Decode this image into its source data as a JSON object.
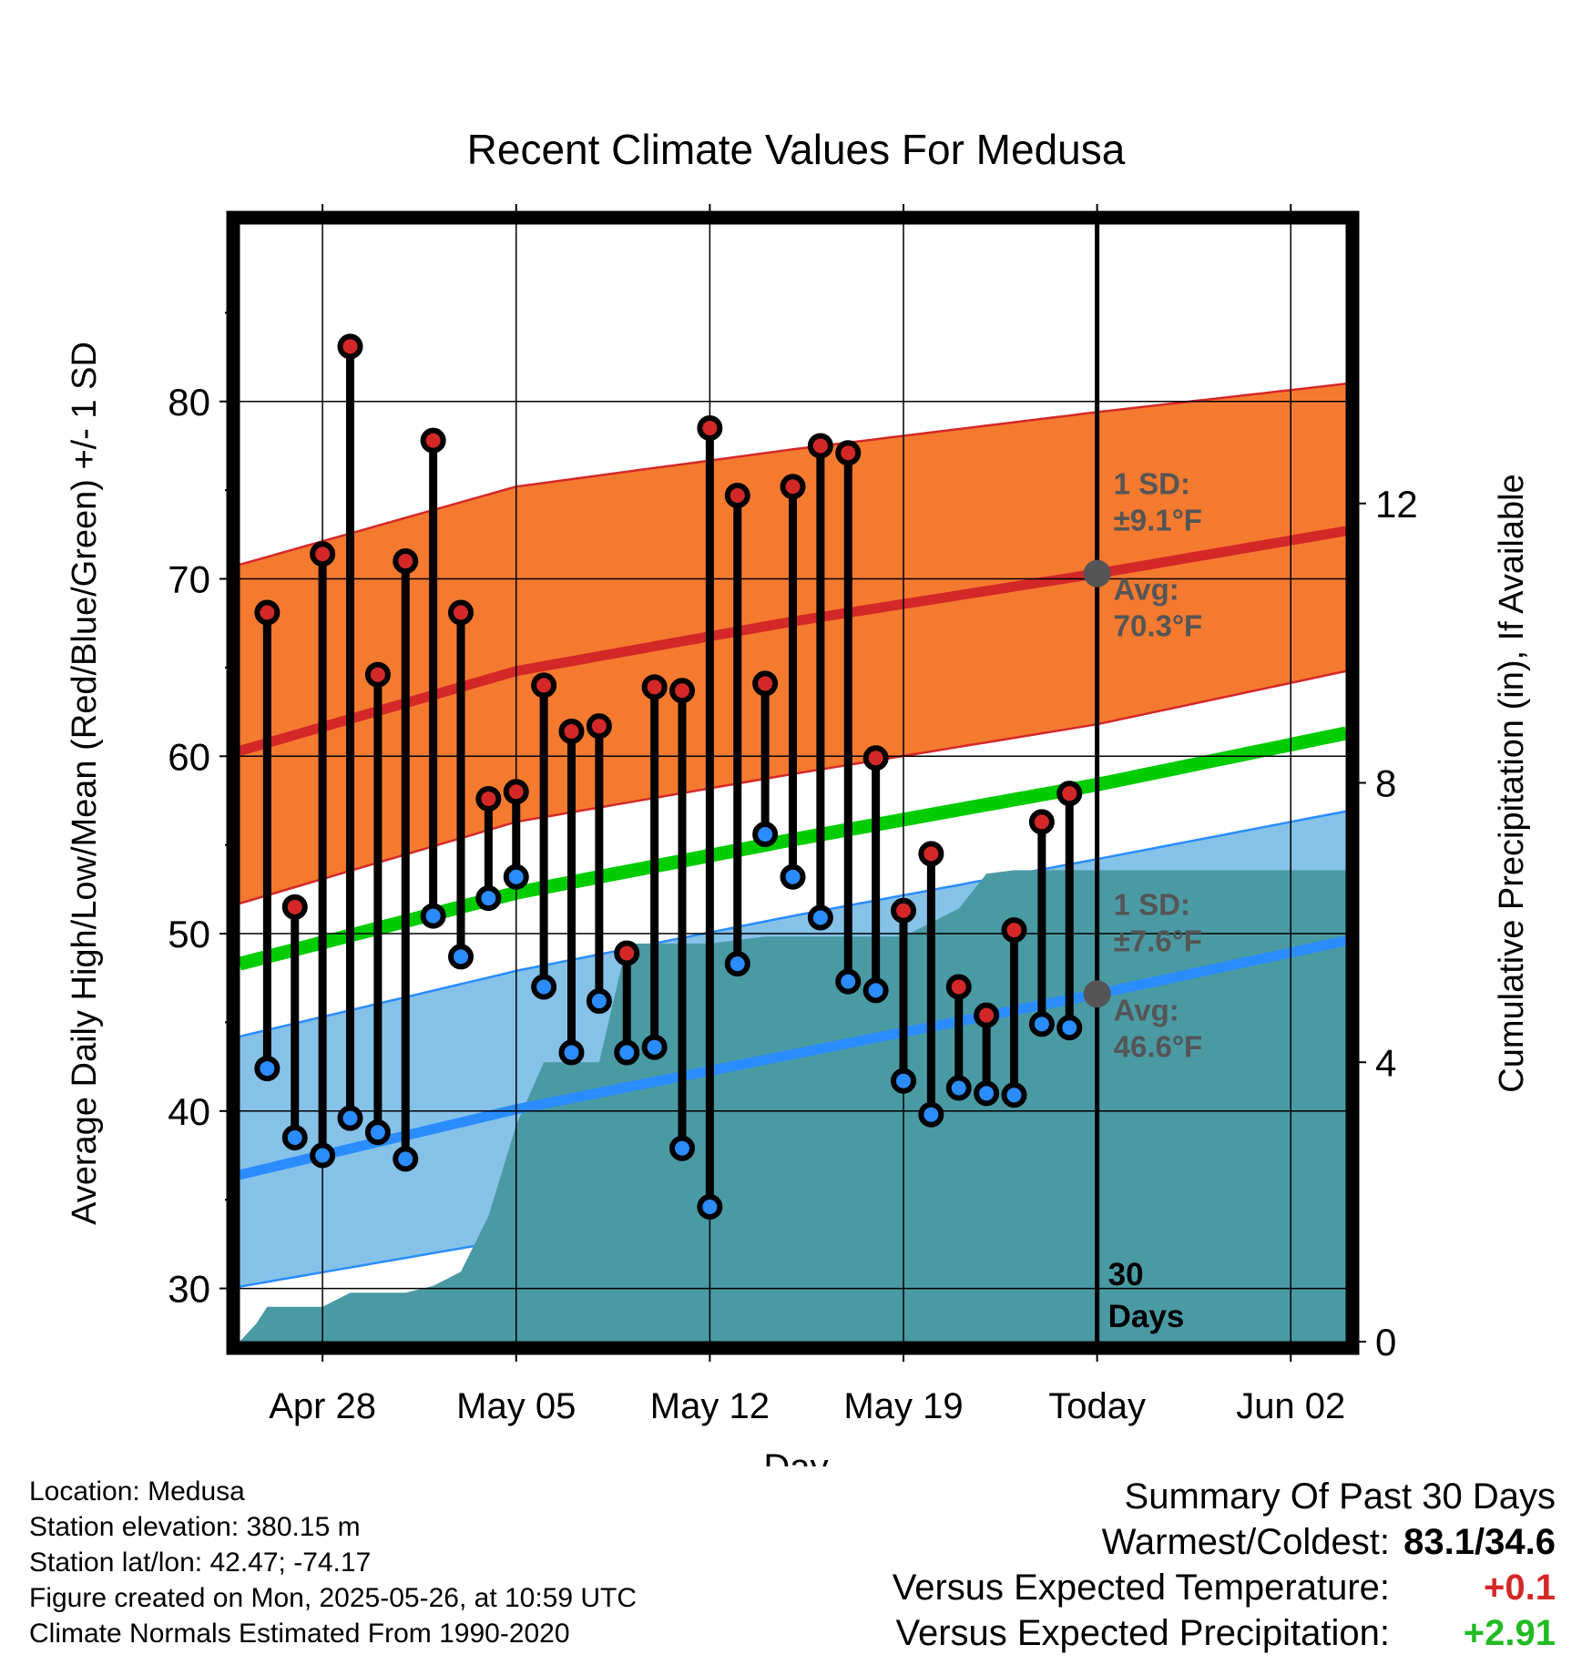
{
  "chart_data": {
    "type": "line",
    "title": "Recent Climate Values For Medusa",
    "xlabel": "Day",
    "ylabel": "Average Daily High/Low/Mean (Red/Blue/Green) +/- 1 SD",
    "y2label": "Cumulative Precipitation (in), If Available",
    "x_tick_labels": [
      "Apr 28",
      "May 05",
      "May 12",
      "May 19",
      "Today",
      "Jun 02"
    ],
    "x_tick_dates": [
      "2025-04-28",
      "2025-05-05",
      "2025-05-12",
      "2025-05-19",
      "2025-05-26",
      "2025-06-02"
    ],
    "xlim": [
      "2025-04-25",
      "2025-06-04"
    ],
    "ylim": [
      27,
      90
    ],
    "y_ticks": [
      30,
      40,
      50,
      60,
      70,
      80
    ],
    "y2lim": [
      0,
      16.0
    ],
    "y2_ticks": [
      0,
      4,
      8,
      12
    ],
    "grid": true,
    "today": "2025-05-26",
    "today_label": "30 Days",
    "colors": {
      "high": "#d42828",
      "low": "#2a8cff",
      "mean": "#00cc00",
      "high_band": "#f47a30",
      "low_band": "#86c2e8",
      "precip": "#4a9aa4",
      "avg_marker": "#555555"
    },
    "normals": {
      "dates": [
        "2025-04-25",
        "2025-05-05",
        "2025-05-15",
        "2025-05-26",
        "2025-06-04"
      ],
      "high_avg": [
        60.3,
        64.8,
        67.6,
        70.3,
        72.7
      ],
      "high_upper": [
        70.8,
        75.2,
        77.3,
        79.4,
        81.0
      ],
      "high_lower": [
        51.7,
        56.3,
        59.0,
        61.8,
        64.8
      ],
      "low_avg": [
        36.4,
        40.1,
        43.2,
        46.6,
        49.6
      ],
      "low_upper": [
        44.2,
        47.9,
        51.0,
        54.2,
        56.9
      ],
      "low_lower": [
        30.1,
        32.8,
        35.9,
        39.0,
        43.4
      ],
      "mean_avg": [
        48.3,
        52.3,
        55.3,
        58.4,
        61.3
      ]
    },
    "series": [
      {
        "name": "Daily High",
        "dates": [
          "2025-04-26",
          "2025-04-27",
          "2025-04-28",
          "2025-04-29",
          "2025-04-30",
          "2025-05-01",
          "2025-05-02",
          "2025-05-03",
          "2025-05-04",
          "2025-05-05",
          "2025-05-06",
          "2025-05-07",
          "2025-05-08",
          "2025-05-09",
          "2025-05-10",
          "2025-05-11",
          "2025-05-12",
          "2025-05-13",
          "2025-05-14",
          "2025-05-15",
          "2025-05-16",
          "2025-05-17",
          "2025-05-18",
          "2025-05-19",
          "2025-05-20",
          "2025-05-21",
          "2025-05-22",
          "2025-05-23",
          "2025-05-24",
          "2025-05-25"
        ],
        "values": [
          68.1,
          51.5,
          71.4,
          83.1,
          64.6,
          71.0,
          77.8,
          68.1,
          57.6,
          58.0,
          64.0,
          61.4,
          61.7,
          48.9,
          63.9,
          63.7,
          78.5,
          74.7,
          64.1,
          75.2,
          77.5,
          77.1,
          59.9,
          51.3,
          54.5,
          47.0,
          45.4,
          50.2,
          56.3,
          57.9
        ]
      },
      {
        "name": "Daily Low",
        "dates": [
          "2025-04-26",
          "2025-04-27",
          "2025-04-28",
          "2025-04-29",
          "2025-04-30",
          "2025-05-01",
          "2025-05-02",
          "2025-05-03",
          "2025-05-04",
          "2025-05-05",
          "2025-05-06",
          "2025-05-07",
          "2025-05-08",
          "2025-05-09",
          "2025-05-10",
          "2025-05-11",
          "2025-05-12",
          "2025-05-13",
          "2025-05-14",
          "2025-05-15",
          "2025-05-16",
          "2025-05-17",
          "2025-05-18",
          "2025-05-19",
          "2025-05-20",
          "2025-05-21",
          "2025-05-22",
          "2025-05-23",
          "2025-05-24",
          "2025-05-25"
        ],
        "values": [
          42.4,
          38.5,
          37.5,
          39.6,
          38.8,
          37.3,
          51.0,
          48.7,
          52.0,
          53.2,
          47.0,
          43.3,
          46.2,
          43.3,
          43.6,
          37.9,
          34.6,
          48.3,
          55.6,
          53.2,
          50.9,
          47.3,
          46.8,
          41.7,
          39.8,
          41.3,
          41.0,
          40.9,
          44.9,
          44.7
        ]
      },
      {
        "name": "Cumulative Precipitation",
        "dates": [
          "2025-04-25",
          "2025-04-25",
          "2025-04-25",
          "2025-04-26",
          "2025-04-28",
          "2025-04-29",
          "2025-05-01",
          "2025-05-02",
          "2025-05-03",
          "2025-05-04",
          "2025-05-05",
          "2025-05-06",
          "2025-05-08",
          "2025-05-09",
          "2025-05-10",
          "2025-05-12",
          "2025-05-14",
          "2025-05-16",
          "2025-05-19",
          "2025-05-21",
          "2025-05-22",
          "2025-05-23",
          "2025-06-04",
          "2025-06-04"
        ],
        "values": [
          0,
          0,
          0.25,
          0.5,
          0.5,
          0.7,
          0.7,
          0.8,
          1.0,
          1.8,
          3.1,
          4.0,
          4.0,
          5.7,
          5.7,
          5.7,
          5.8,
          5.8,
          5.8,
          6.2,
          6.7,
          6.75,
          6.75,
          0
        ]
      }
    ],
    "annotations": {
      "high_sd": "1 SD:",
      "high_sd_value": "±9.1°F",
      "high_avg": "Avg:",
      "high_avg_value": "70.3°F",
      "low_sd": "1 SD:",
      "low_sd_value": "±7.6°F",
      "low_avg": "Avg:",
      "low_avg_value": "46.6°F",
      "today_line_1": "30",
      "today_line_2": "Days"
    }
  },
  "footer": {
    "location": "Location: Medusa",
    "elevation": "Station elevation: 380.15 m",
    "latlon": "Station lat/lon: 42.47; -74.17",
    "created": "Figure created on Mon, 2025-05-26, at 10:59 UTC",
    "normals": "Climate Normals Estimated From 1990-2020"
  },
  "summary": {
    "title": "Summary Of Past 30 Days",
    "warmest_label": "Warmest/Coldest:",
    "warmest_value": "83.1/34.6",
    "temp_label": "Versus Expected Temperature:",
    "temp_value": "+0.1",
    "temp_color": "#d42828",
    "precip_label": "Versus Expected Precipitation:",
    "precip_value": "+2.91",
    "precip_color": "#22bb22"
  }
}
